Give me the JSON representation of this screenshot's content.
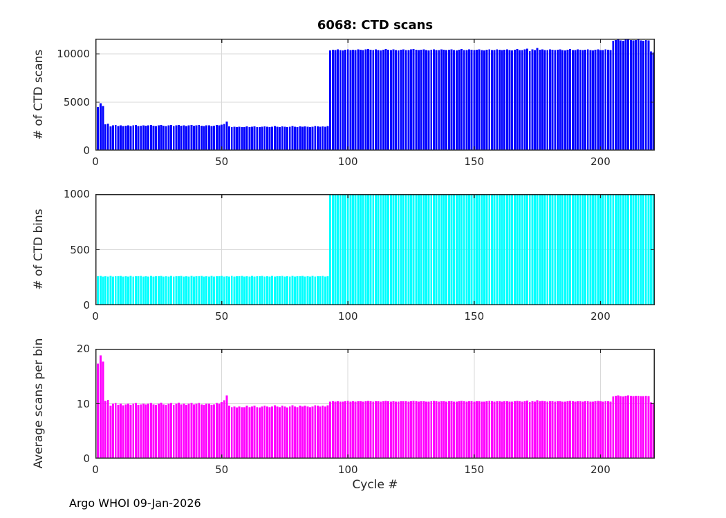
{
  "page": {
    "footer": "Argo WHOI 09-Jan-2026"
  },
  "chart_data": [
    {
      "type": "bar",
      "id": "ctd-scans",
      "title": "6068: CTD scans",
      "ylabel": "# of CTD scans",
      "color": "#0000FF",
      "grid": true,
      "box": true,
      "bar_width": 0.8,
      "x_start": 1,
      "xlim": [
        0,
        221.5
      ],
      "xticks": [
        0,
        50,
        100,
        150,
        200
      ],
      "ylim": [
        0,
        11571
      ],
      "yticks": [
        0,
        5000,
        10000
      ],
      "values": [
        4500,
        4890,
        4600,
        2730,
        2780,
        2500,
        2600,
        2630,
        2550,
        2600,
        2520,
        2570,
        2600,
        2550,
        2600,
        2630,
        2550,
        2570,
        2600,
        2570,
        2600,
        2630,
        2570,
        2550,
        2600,
        2650,
        2570,
        2550,
        2600,
        2630,
        2550,
        2600,
        2650,
        2570,
        2600,
        2550,
        2600,
        2630,
        2570,
        2600,
        2630,
        2570,
        2550,
        2600,
        2600,
        2550,
        2570,
        2630,
        2600,
        2680,
        2760,
        2990,
        2500,
        2440,
        2470,
        2420,
        2470,
        2440,
        2440,
        2500,
        2440,
        2470,
        2500,
        2440,
        2420,
        2470,
        2500,
        2470,
        2440,
        2470,
        2520,
        2470,
        2440,
        2500,
        2470,
        2420,
        2470,
        2520,
        2470,
        2440,
        2500,
        2470,
        2500,
        2470,
        2440,
        2470,
        2520,
        2500,
        2470,
        2500,
        2470,
        2520,
        10350,
        10420,
        10380,
        10450,
        10400,
        10370,
        10430,
        10480,
        10400,
        10440,
        10390,
        10460,
        10420,
        10380,
        10450,
        10500,
        10430,
        10390,
        10460,
        10410,
        10370,
        10440,
        10490,
        10420,
        10380,
        10450,
        10400,
        10360,
        10430,
        10470,
        10410,
        10380,
        10450,
        10500,
        10420,
        10390,
        10440,
        10460,
        10400,
        10370,
        10430,
        10480,
        10410,
        10390,
        10450,
        10420,
        10380,
        10440,
        10470,
        10400,
        10360,
        10430,
        10490,
        10410,
        10380,
        10450,
        10420,
        10390,
        10440,
        10460,
        10400,
        10370,
        10430,
        10480,
        10410,
        10390,
        10450,
        10420,
        10380,
        10440,
        10470,
        10400,
        10360,
        10430,
        10490,
        10410,
        10380,
        10450,
        10550,
        10300,
        10460,
        10400,
        10600,
        10430,
        10480,
        10410,
        10390,
        10450,
        10420,
        10380,
        10440,
        10470,
        10400,
        10360,
        10430,
        10490,
        10410,
        10380,
        10450,
        10420,
        10390,
        10440,
        10460,
        10400,
        10370,
        10430,
        10480,
        10410,
        10390,
        10450,
        10420,
        10380,
        11350,
        11420,
        11480,
        11400,
        11350,
        11450,
        11500,
        11430,
        11380,
        11440,
        11470,
        11400,
        11360,
        11420,
        11380,
        10250,
        10150
      ]
    },
    {
      "type": "bar",
      "id": "ctd-bins",
      "ylabel": "# of CTD bins",
      "color": "#00FFFF",
      "grid": true,
      "box": true,
      "bar_width": 0.8,
      "x_start": 1,
      "xlim": [
        0,
        221.5
      ],
      "xticks": [
        0,
        50,
        100,
        150,
        200
      ],
      "ylim": [
        0,
        1000
      ],
      "yticks": [
        0,
        500,
        1000
      ],
      "values": [
        260,
        264,
        258,
        262,
        259,
        263,
        257,
        261,
        260,
        264,
        258,
        262,
        259,
        263,
        257,
        261,
        260,
        264,
        258,
        262,
        259,
        263,
        257,
        261,
        260,
        264,
        258,
        262,
        259,
        263,
        257,
        261,
        260,
        264,
        258,
        262,
        259,
        263,
        257,
        261,
        260,
        264,
        258,
        262,
        259,
        263,
        257,
        261,
        260,
        264,
        258,
        262,
        259,
        263,
        257,
        261,
        260,
        264,
        258,
        262,
        259,
        263,
        257,
        261,
        260,
        264,
        258,
        262,
        259,
        263,
        257,
        261,
        260,
        264,
        258,
        262,
        259,
        263,
        257,
        261,
        260,
        264,
        258,
        262,
        259,
        263,
        257,
        261,
        260,
        264,
        258,
        262,
        1000,
        1000,
        1000,
        1000,
        1000,
        1000,
        1000,
        1000,
        1000,
        1000,
        1000,
        1000,
        1000,
        1000,
        1000,
        1000,
        1000,
        1000,
        1000,
        1000,
        1000,
        1000,
        1000,
        1000,
        1000,
        1000,
        1000,
        1000,
        1000,
        1000,
        1000,
        1000,
        1000,
        1000,
        1000,
        1000,
        1000,
        1000,
        1000,
        1000,
        1000,
        1000,
        1000,
        1000,
        1000,
        1000,
        1000,
        1000,
        1000,
        1000,
        1000,
        1000,
        1000,
        1000,
        1000,
        1000,
        1000,
        1000,
        1000,
        1000,
        1000,
        1000,
        1000,
        1000,
        1000,
        1000,
        1000,
        1000,
        1000,
        1000,
        1000,
        1000,
        1000,
        1000,
        1000,
        1000,
        1000,
        1000,
        1000,
        1000,
        1000,
        1000,
        1000,
        1000,
        1000,
        1000,
        1000,
        1000,
        1000,
        1000,
        1000,
        1000,
        1000,
        1000,
        1000,
        1000,
        1000,
        1000,
        1000,
        1000,
        1000,
        1000,
        1000,
        1000,
        1000,
        1000,
        1000,
        1000,
        1000,
        1000,
        1000,
        1000,
        1000,
        1000,
        1000,
        1000,
        1000,
        1000,
        1000,
        1000,
        1000,
        1000,
        1000,
        1000,
        1000,
        1000,
        1000,
        1000,
        1000
      ]
    },
    {
      "type": "bar",
      "id": "avg-scans-per-bin",
      "ylabel": "Average scans per bin",
      "xlabel": "Cycle #",
      "color": "#FF00FF",
      "grid": true,
      "box": true,
      "bar_width": 0.8,
      "x_start": 1,
      "xlim": [
        0,
        221.5
      ],
      "xticks": [
        0,
        50,
        100,
        150,
        200
      ],
      "ylim": [
        0,
        20
      ],
      "yticks": [
        0,
        10,
        20
      ],
      "values": [
        17.3,
        18.8,
        17.7,
        10.5,
        10.7,
        9.6,
        10.0,
        10.1,
        9.8,
        10.0,
        9.7,
        9.9,
        10.0,
        9.8,
        10.0,
        10.1,
        9.8,
        9.9,
        10.0,
        9.9,
        10.0,
        10.1,
        9.9,
        9.8,
        10.0,
        10.2,
        9.9,
        9.8,
        10.0,
        10.1,
        9.8,
        10.0,
        10.2,
        9.9,
        10.0,
        9.8,
        10.0,
        10.1,
        9.9,
        10.0,
        10.1,
        9.9,
        9.8,
        10.0,
        10.0,
        9.8,
        9.9,
        10.1,
        10.0,
        10.3,
        10.6,
        11.5,
        9.6,
        9.4,
        9.5,
        9.3,
        9.5,
        9.4,
        9.4,
        9.6,
        9.4,
        9.5,
        9.6,
        9.4,
        9.3,
        9.5,
        9.6,
        9.5,
        9.4,
        9.5,
        9.7,
        9.5,
        9.4,
        9.6,
        9.5,
        9.3,
        9.5,
        9.7,
        9.5,
        9.4,
        9.6,
        9.5,
        9.6,
        9.5,
        9.4,
        9.5,
        9.7,
        9.6,
        9.5,
        9.6,
        9.5,
        9.7,
        10.35,
        10.42,
        10.38,
        10.45,
        10.4,
        10.37,
        10.43,
        10.48,
        10.4,
        10.44,
        10.39,
        10.46,
        10.42,
        10.38,
        10.45,
        10.5,
        10.43,
        10.39,
        10.46,
        10.41,
        10.37,
        10.44,
        10.49,
        10.42,
        10.38,
        10.45,
        10.4,
        10.36,
        10.43,
        10.47,
        10.41,
        10.38,
        10.45,
        10.5,
        10.42,
        10.39,
        10.44,
        10.46,
        10.4,
        10.37,
        10.43,
        10.48,
        10.41,
        10.39,
        10.45,
        10.42,
        10.38,
        10.44,
        10.47,
        10.4,
        10.36,
        10.43,
        10.49,
        10.41,
        10.38,
        10.45,
        10.42,
        10.39,
        10.44,
        10.46,
        10.4,
        10.37,
        10.43,
        10.48,
        10.41,
        10.39,
        10.45,
        10.42,
        10.38,
        10.44,
        10.47,
        10.4,
        10.36,
        10.43,
        10.49,
        10.41,
        10.38,
        10.45,
        10.55,
        10.3,
        10.46,
        10.4,
        10.6,
        10.43,
        10.48,
        10.41,
        10.39,
        10.45,
        10.42,
        10.38,
        10.44,
        10.47,
        10.4,
        10.36,
        10.43,
        10.49,
        10.41,
        10.38,
        10.45,
        10.42,
        10.39,
        10.44,
        10.46,
        10.4,
        10.37,
        10.43,
        10.48,
        10.41,
        10.39,
        10.45,
        10.42,
        10.38,
        11.35,
        11.42,
        11.48,
        11.4,
        11.35,
        11.45,
        11.5,
        11.43,
        11.38,
        11.44,
        11.47,
        11.4,
        11.36,
        11.42,
        11.38,
        10.25,
        10.15
      ]
    }
  ]
}
